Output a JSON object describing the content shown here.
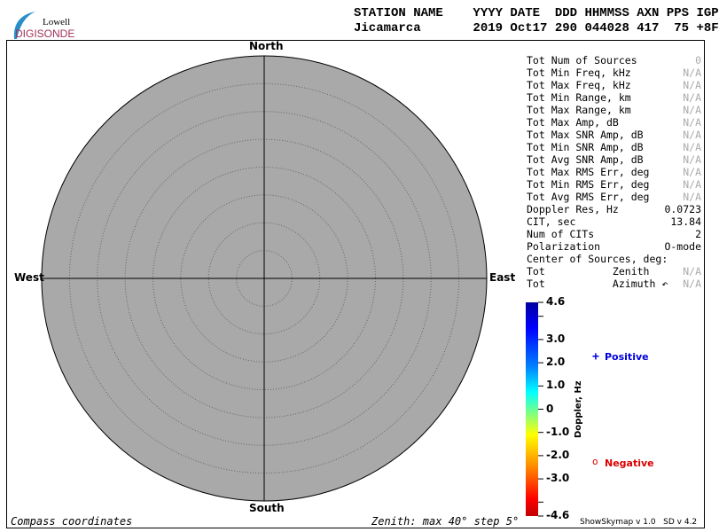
{
  "logo": {
    "line1": "Lowell",
    "line2": "DIGISONDE"
  },
  "header": {
    "labels": "STATION NAME    YYYY DATE  DDD HHMMSS AXN PPS IGP",
    "values": "Jicamarca       2019 Oct17 290 044028 417  75 +8F"
  },
  "compass": {
    "north": "North",
    "south": "South",
    "east": "East",
    "west": "West"
  },
  "stats": [
    {
      "label": "Tot Num of Sources",
      "value": "0",
      "na": true
    },
    {
      "label": "Tot Min Freq, kHz",
      "value": "N/A",
      "na": true
    },
    {
      "label": "Tot Max Freq, kHz",
      "value": "N/A",
      "na": true
    },
    {
      "label": "Tot Min Range, km",
      "value": "N/A",
      "na": true
    },
    {
      "label": "Tot Max Range, km",
      "value": "N/A",
      "na": true
    },
    {
      "label": "Tot Max Amp, dB",
      "value": "N/A",
      "na": true
    },
    {
      "label": "Tot Max SNR Amp, dB",
      "value": "N/A",
      "na": true
    },
    {
      "label": "Tot Min SNR Amp, dB",
      "value": "N/A",
      "na": true
    },
    {
      "label": "Tot Avg SNR Amp, dB",
      "value": "N/A",
      "na": true
    },
    {
      "label": "Tot Max RMS Err, deg",
      "value": "N/A",
      "na": true
    },
    {
      "label": "Tot Min RMS Err, deg",
      "value": "N/A",
      "na": true
    },
    {
      "label": "Tot Avg RMS Err, deg",
      "value": "N/A",
      "na": true
    },
    {
      "label": "Doppler Res, Hz",
      "value": "0.0723",
      "na": false
    },
    {
      "label": "CIT, sec",
      "value": "13.84",
      "na": false
    },
    {
      "label": "Num of CITs",
      "value": "2",
      "na": false
    },
    {
      "label": "Polarization",
      "value": "O-mode",
      "na": false
    },
    {
      "label": "Center of Sources, deg:",
      "value": "",
      "na": false
    },
    {
      "label": "Tot           Zenith",
      "value": "N/A",
      "na": true
    },
    {
      "label": "Tot           Azimuth ↶",
      "value": "N/A",
      "na": true
    }
  ],
  "colorbar": {
    "label": "Doppler, Hz",
    "ticks": [
      "4.6",
      "3.0",
      "2.0",
      "1.0",
      "0",
      "-1.0",
      "-2.0",
      "-3.0",
      "-4.6"
    ]
  },
  "legend": {
    "positive": "Positive",
    "negative": "Negative",
    "positive_symbol": "+",
    "negative_symbol": "o",
    "positive_color": "#0000dd",
    "negative_color": "#dd0000"
  },
  "footer": {
    "left": "Compass coordinates",
    "center": "Zenith: max 40°  step 5°",
    "right": "ShowSkymap v 1.0   SD v 4.2"
  },
  "plot": {
    "fill": "#a9a9a9",
    "zenith_max_deg": 40,
    "zenith_step_deg": 5
  }
}
